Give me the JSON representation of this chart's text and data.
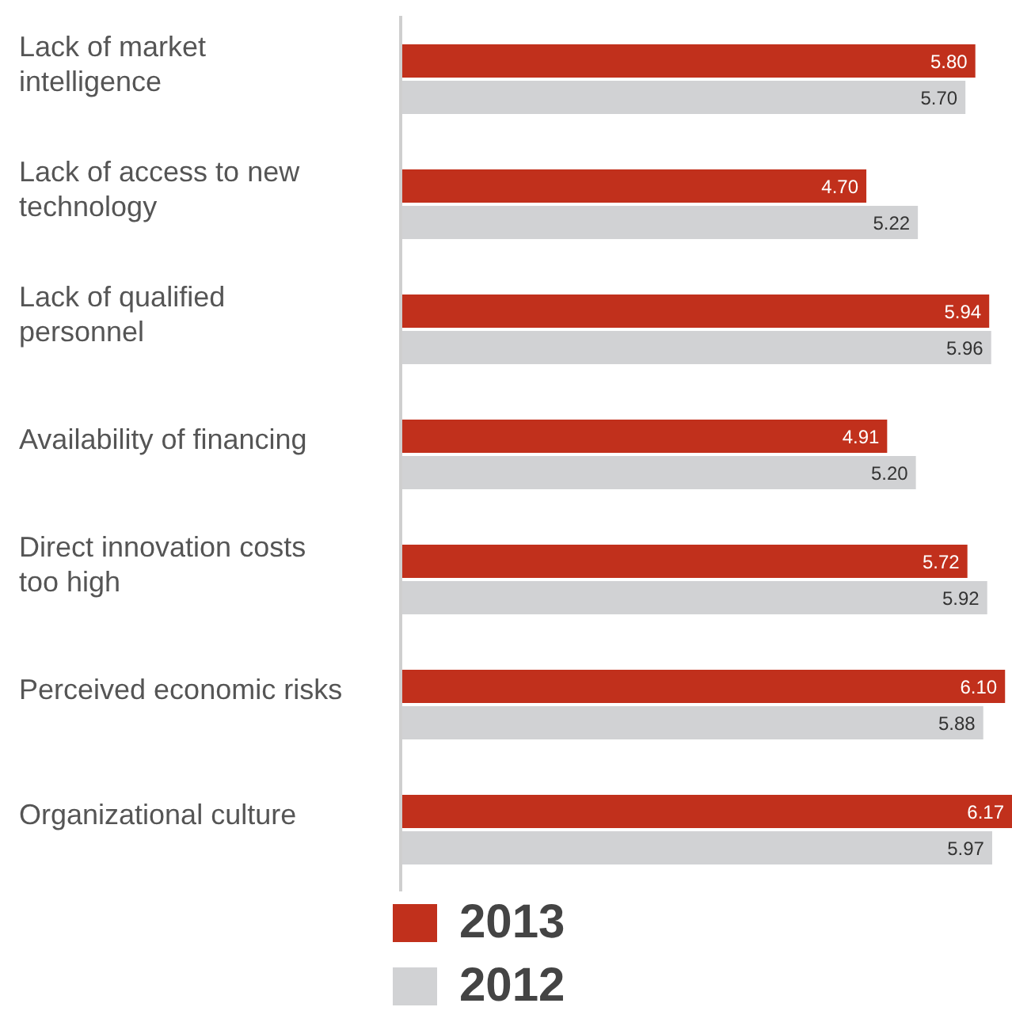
{
  "chart_data": {
    "type": "bar",
    "orientation": "horizontal",
    "categories": [
      "Lack of market intelligence",
      "Lack of access to new technology",
      "Lack of qualified personnel",
      "Availability of financing",
      "Direct innovation costs too high",
      "Perceived economic risks",
      "Organizational culture"
    ],
    "series": [
      {
        "name": "2013",
        "color": "#c1301c",
        "values": [
          5.8,
          4.7,
          5.94,
          4.91,
          5.72,
          6.1,
          6.17
        ],
        "value_labels": [
          "5.80",
          "4.70",
          "5.94",
          "4.91",
          "5.72",
          "6.10",
          "6.17"
        ]
      },
      {
        "name": "2012",
        "color": "#d1d2d4",
        "values": [
          5.7,
          5.22,
          5.96,
          5.2,
          5.92,
          5.88,
          5.97
        ],
        "value_labels": [
          "5.70",
          "5.22",
          "5.96",
          "5.20",
          "5.92",
          "5.88",
          "5.97"
        ]
      }
    ],
    "legend": "bottom",
    "grid": false
  }
}
